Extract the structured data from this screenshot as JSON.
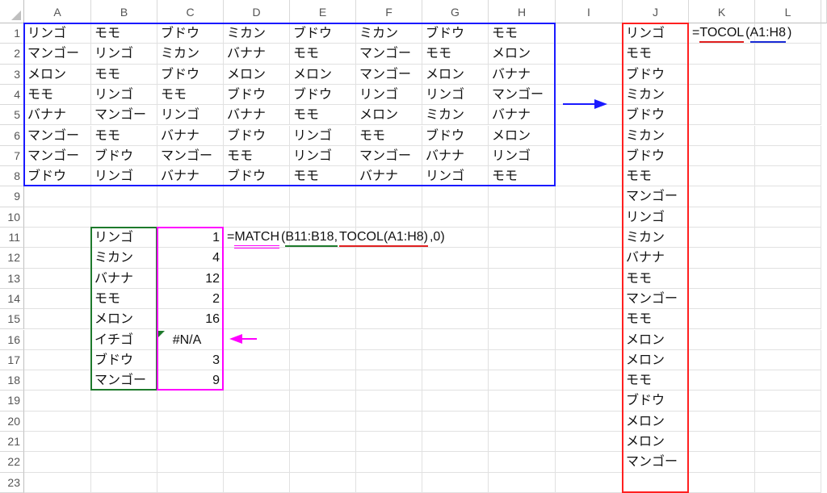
{
  "columns": [
    "A",
    "B",
    "C",
    "D",
    "E",
    "F",
    "G",
    "H",
    "I",
    "J",
    "K",
    "L"
  ],
  "row_count": 23,
  "cells": {
    "A1": "リンゴ",
    "B1": "モモ",
    "C1": "ブドウ",
    "D1": "ミカン",
    "E1": "ブドウ",
    "F1": "ミカン",
    "G1": "ブドウ",
    "H1": "モモ",
    "A2": "マンゴー",
    "B2": "リンゴ",
    "C2": "ミカン",
    "D2": "バナナ",
    "E2": "モモ",
    "F2": "マンゴー",
    "G2": "モモ",
    "H2": "メロン",
    "A3": "メロン",
    "B3": "モモ",
    "C3": "ブドウ",
    "D3": "メロン",
    "E3": "メロン",
    "F3": "マンゴー",
    "G3": "メロン",
    "H3": "バナナ",
    "A4": "モモ",
    "B4": "リンゴ",
    "C4": "モモ",
    "D4": "ブドウ",
    "E4": "ブドウ",
    "F4": "リンゴ",
    "G4": "リンゴ",
    "H4": "マンゴー",
    "A5": "バナナ",
    "B5": "マンゴー",
    "C5": "リンゴ",
    "D5": "バナナ",
    "E5": "モモ",
    "F5": "メロン",
    "G5": "ミカン",
    "H5": "バナナ",
    "A6": "マンゴー",
    "B6": "モモ",
    "C6": "バナナ",
    "D6": "ブドウ",
    "E6": "リンゴ",
    "F6": "モモ",
    "G6": "ブドウ",
    "H6": "メロン",
    "A7": "マンゴー",
    "B7": "ブドウ",
    "C7": "マンゴー",
    "D7": "モモ",
    "E7": "リンゴ",
    "F7": "マンゴー",
    "G7": "バナナ",
    "H7": "リンゴ",
    "A8": "ブドウ",
    "B8": "リンゴ",
    "C8": "バナナ",
    "D8": "ブドウ",
    "E8": "モモ",
    "F8": "バナナ",
    "G8": "リンゴ",
    "H8": "モモ",
    "J1": "リンゴ",
    "J2": "モモ",
    "J3": "ブドウ",
    "J4": "ミカン",
    "J5": "ブドウ",
    "J6": "ミカン",
    "J7": "ブドウ",
    "J8": "モモ",
    "J9": "マンゴー",
    "J10": "リンゴ",
    "J11": "ミカン",
    "J12": "バナナ",
    "J13": "モモ",
    "J14": "マンゴー",
    "J15": "モモ",
    "J16": "メロン",
    "J17": "メロン",
    "J18": "モモ",
    "J19": "ブドウ",
    "J20": "メロン",
    "J21": "メロン",
    "J22": "マンゴー",
    "B11": "リンゴ",
    "B12": "ミカン",
    "B13": "バナナ",
    "B14": "モモ",
    "B15": "メロン",
    "B16": "イチゴ",
    "B17": "ブドウ",
    "B18": "マンゴー",
    "C11": "1",
    "C12": "4",
    "C13": "12",
    "C14": "2",
    "C15": "16",
    "C16": "#N/A",
    "C17": "3",
    "C18": "9"
  },
  "numeric_cells": [
    "C11",
    "C12",
    "C13",
    "C14",
    "C15",
    "C17",
    "C18"
  ],
  "error_cells": [
    "C16"
  ],
  "formulas": {
    "K1": [
      {
        "text": "=",
        "underline": null
      },
      {
        "text": "TOCOL",
        "underline": "#e02020"
      },
      {
        "text": "(",
        "underline": null
      },
      {
        "text": "A1:H8",
        "underline": "#1a2bd6"
      },
      {
        "text": ")",
        "underline": null
      }
    ],
    "D11": [
      {
        "text": "=",
        "underline": null
      },
      {
        "text": "MATCH",
        "underline": "#ff00ff",
        "double": true
      },
      {
        "text": "(",
        "underline": null
      },
      {
        "text": "B11:B18,",
        "underline": "#1e7a2c"
      },
      {
        "text": "TOCOL(A1:H8)",
        "underline": "#e02020"
      },
      {
        "text": ",0)",
        "underline": null
      }
    ]
  },
  "highlights": {
    "source_range": {
      "range": "A1:H8",
      "color": "#1a1aff"
    },
    "tocol_result": {
      "range": "J1:J23",
      "color": "#ff2020"
    },
    "lookup_values": {
      "range": "B11:B18",
      "color": "#1e7a2c"
    },
    "match_results": {
      "range": "C11:C18",
      "color": "#ff00ff"
    }
  },
  "arrows": {
    "to_result": {
      "color": "#1a1aff",
      "direction": "right"
    },
    "error_pointer": {
      "color": "#ff00ff",
      "direction": "left"
    }
  }
}
